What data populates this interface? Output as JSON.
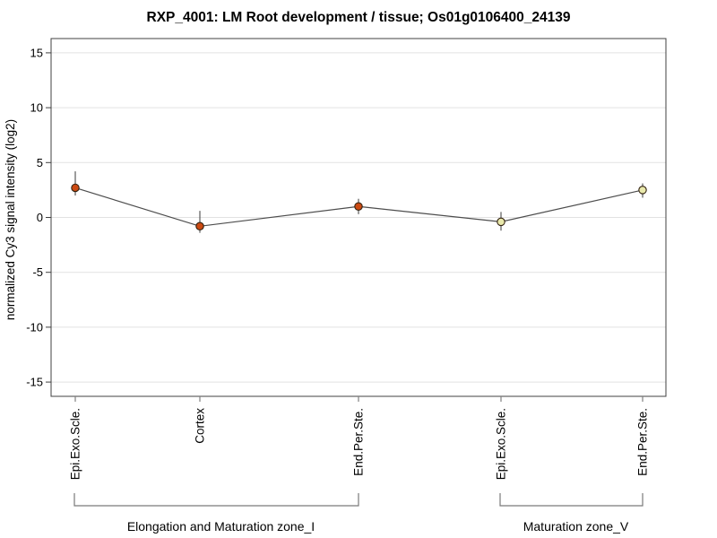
{
  "title": "RXP_4001: LM Root development / tissue; Os01g0106400_24139",
  "chart_data": {
    "type": "line",
    "title": "RXP_4001: LM Root development / tissue; Os01g0106400_24139",
    "xlabel": "",
    "ylabel": "normalized Cy3 signal intensity (log2)",
    "ylim": [
      -16.3,
      16.3
    ],
    "yticks": [
      15,
      10,
      5,
      0,
      -5,
      -10,
      -15
    ],
    "grid": true,
    "legend": "none",
    "categories": [
      "Epi.Exo.Scle.",
      "Cortex",
      "End.Per.Ste.",
      "Epi.Exo.Scle.",
      "End.Per.Ste."
    ],
    "series": [
      {
        "name": "normalized Cy3 signal intensity (log2)",
        "values": [
          2.7,
          -0.8,
          1.0,
          -0.4,
          2.5
        ],
        "error_high": [
          4.2,
          0.6,
          1.7,
          0.5,
          3.1
        ],
        "error_low": [
          2.0,
          -1.4,
          0.3,
          -1.2,
          1.8
        ]
      }
    ],
    "marker_fills": [
      "#cc4a12",
      "#cc4a12",
      "#cc4a12",
      "#e9e9ac",
      "#e9e9ac"
    ],
    "groups": [
      {
        "label": "Elongation and Maturation zone_I",
        "start": 0,
        "end": 2
      },
      {
        "label": "Maturation zone_V",
        "start": 3,
        "end": 4
      }
    ],
    "colors": {
      "line": "#4d4d4d",
      "error_bar": "#5a5a5a",
      "grid": "#e2e2e2",
      "border": "#404040",
      "y_tick": "#404040",
      "x_tick": "#808080",
      "bracket": "#7a7a7a",
      "marker_stroke": "#332211",
      "text": "#000000"
    }
  }
}
